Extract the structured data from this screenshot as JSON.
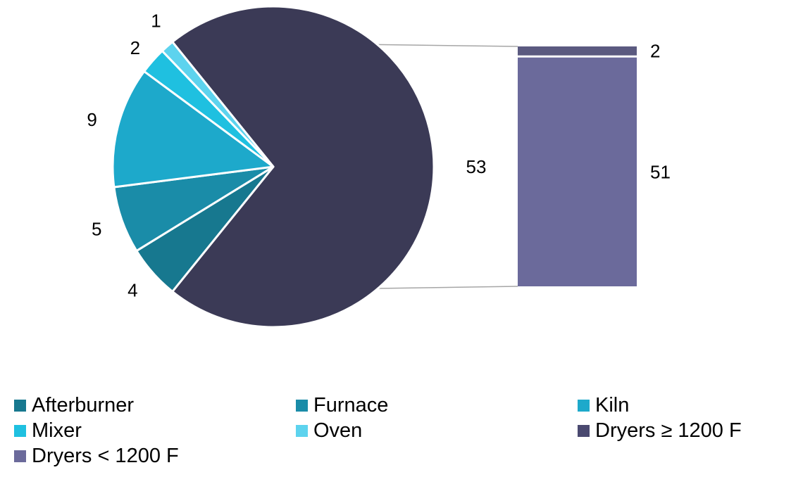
{
  "chart_data": {
    "type": "bar-of-pie",
    "pie": {
      "slices": [
        {
          "name": "Dryers ≥ 1200 F",
          "value": 53,
          "label": "53",
          "color": "#3b3a56"
        },
        {
          "name": "Afterburner",
          "value": 4,
          "label": "4",
          "color": "#17788f"
        },
        {
          "name": "Furnace",
          "value": 5,
          "label": "5",
          "color": "#1a8ca8"
        },
        {
          "name": "Kiln",
          "value": 9,
          "label": "9",
          "color": "#1da9cb"
        },
        {
          "name": "Mixer",
          "value": 2,
          "label": "2",
          "color": "#1fc0e0"
        },
        {
          "name": "Oven",
          "value": 1,
          "label": "1",
          "color": "#5dd3ee"
        }
      ]
    },
    "bar": {
      "segments": [
        {
          "name": "Dryers ≥ 1200 F",
          "value": 2,
          "label": "2",
          "color": "#5b5a80"
        },
        {
          "name": "Dryers < 1200 F",
          "value": 51,
          "label": "51",
          "color": "#6b6a9b"
        }
      ]
    },
    "legend": [
      {
        "label": "Afterburner",
        "color": "#17788f"
      },
      {
        "label": "Furnace",
        "color": "#1a8ca8"
      },
      {
        "label": "Kiln",
        "color": "#1da9cb"
      },
      {
        "label": "Mixer",
        "color": "#1fc0e0"
      },
      {
        "label": "Oven",
        "color": "#5dd3ee"
      },
      {
        "label": "Dryers ≥ 1200 F",
        "color": "#4a4970"
      },
      {
        "label": "Dryers < 1200 F",
        "color": "#6b6a9b"
      }
    ],
    "legend_position": "bottom"
  }
}
